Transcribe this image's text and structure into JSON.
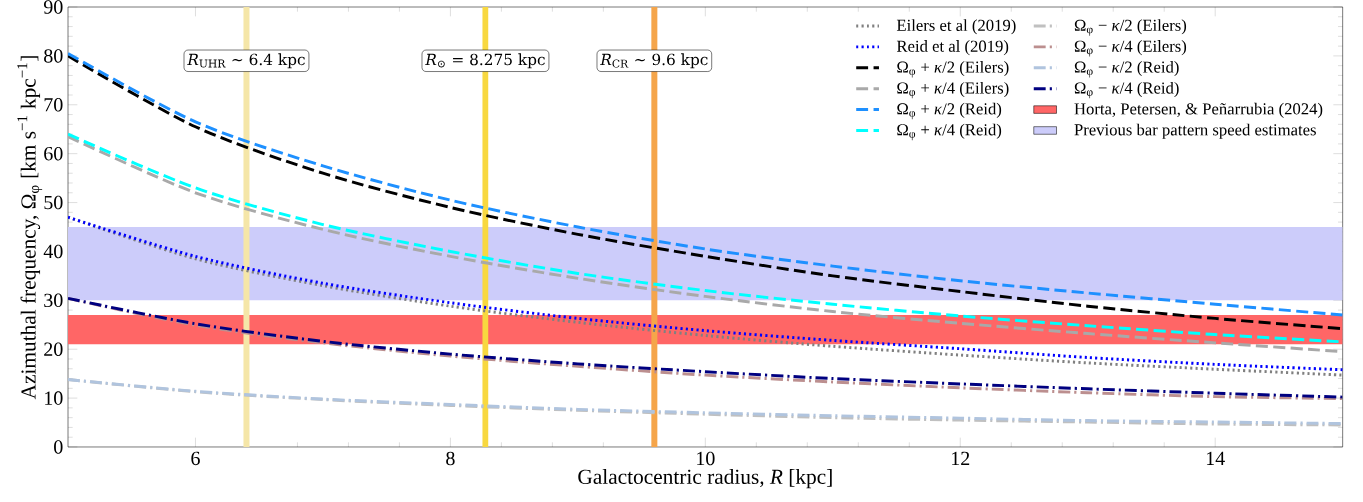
{
  "chart_data": {
    "type": "line",
    "xlabel": "Galactocentric radius, *R* [kpc]",
    "ylabel": "Azimuthal frequency, Ω$_{φ}$ [km s$^{−1}$ kpc$^{−1}$]",
    "x": [
      5,
      6,
      7,
      8,
      9,
      10,
      11,
      12,
      13,
      14,
      15
    ],
    "xlim": [
      5,
      15
    ],
    "ylim": [
      0,
      90
    ],
    "xticks": [
      6,
      8,
      10,
      12,
      14
    ],
    "yticks": [
      0,
      10,
      20,
      30,
      40,
      50,
      60,
      70,
      80,
      90
    ],
    "grid": false,
    "legend": "top right",
    "series": [
      {
        "name": "Eilers et al (2019)",
        "color": "#808080",
        "line_style": "dotted",
        "values": [
          47,
          38.5,
          33,
          28.8,
          25.5,
          22.8,
          20.6,
          18.8,
          17.2,
          15.9,
          14.7
        ]
      },
      {
        "name": "Reid et al (2019)",
        "color": "#0000ff",
        "line_style": "dotted",
        "values": [
          47,
          39,
          33.5,
          29.5,
          26.3,
          23.8,
          21.8,
          20.1,
          18.3,
          16.9,
          15.8
        ]
      },
      {
        "name": "Ω$_{φ}$ + *κ*/2 (Eilers)",
        "color": "#000000",
        "line_style": "dashed",
        "values": [
          80,
          65.5,
          56,
          49,
          43.5,
          39,
          35,
          31.8,
          28.8,
          26.3,
          24.2
        ]
      },
      {
        "name": "Ω$_{φ}$ + *κ*/4 (Eilers)",
        "color": "#a9a9a9",
        "line_style": "dashed",
        "values": [
          63.5,
          52,
          44.5,
          39,
          34.5,
          30.8,
          27.7,
          25.3,
          23.2,
          21.3,
          19.5
        ]
      },
      {
        "name": "Ω$_{φ}$ + *κ*/2 (Reid)",
        "color": "#1e90ff",
        "line_style": "dashed",
        "values": [
          80.5,
          66.5,
          57.5,
          50.5,
          45,
          40.5,
          37,
          34,
          31.5,
          29.2,
          27
        ]
      },
      {
        "name": "Ω$_{φ}$ + *κ*/4 (Reid)",
        "color": "#00ffff",
        "line_style": "dashed",
        "values": [
          64,
          53,
          45.5,
          40,
          35.5,
          32,
          29.2,
          26.8,
          24.8,
          23,
          21.5
        ]
      },
      {
        "name": "Ω$_{φ}$ − *κ*/2 (Eilers)",
        "color": "#c0c0c0",
        "line_style": "dashdot",
        "values": [
          13.8,
          11.3,
          9.7,
          8.5,
          7.5,
          6.7,
          6,
          5.5,
          5.1,
          4.7,
          4.5
        ]
      },
      {
        "name": "Ω$_{φ}$ − *κ*/4 (Eilers)",
        "color": "#bc8f8f",
        "line_style": "dashdot",
        "values": [
          30.4,
          24.9,
          21.3,
          18.6,
          16.5,
          14.7,
          13.3,
          12.1,
          11.1,
          10.3,
          9.9
        ]
      },
      {
        "name": "Ω$_{φ}$ − *κ*/2 (Reid)",
        "color": "#b0c4de",
        "line_style": "dashdot",
        "values": [
          13.8,
          11.4,
          9.8,
          8.7,
          7.7,
          7,
          6.4,
          5.9,
          5.4,
          5.1,
          4.8
        ]
      },
      {
        "name": "Ω$_{φ}$ − *κ*/4 (Reid)",
        "color": "#000080",
        "line_style": "dashdot",
        "values": [
          30.4,
          25.2,
          21.6,
          19,
          17,
          15.4,
          14,
          12.9,
          11.9,
          11,
          10.2
        ]
      }
    ],
    "bands": [
      {
        "axis": "y",
        "from": 21,
        "to": 27,
        "label": "Horta, Petersen, & Peñarrubia (2024)",
        "color": "#ff6666"
      },
      {
        "axis": "y",
        "from": 30,
        "to": 45,
        "label": "Previous bar pattern speed estimates",
        "color": "#ccccfa"
      }
    ],
    "ref_lines": [
      {
        "axis": "x",
        "value": 6.4,
        "label": "*R*$_{UHR}$ ∼ 6.4 kpc",
        "color": "#f5e6a8"
      },
      {
        "axis": "x",
        "value": 8.275,
        "label": "*R*$_{⊙}$ = 8.275 kpc",
        "color": "#f8d840"
      },
      {
        "axis": "x",
        "value": 9.6,
        "label": "*R*$_{CR}$ ∼ 9.6 kpc",
        "color": "#f5a54a"
      }
    ]
  }
}
